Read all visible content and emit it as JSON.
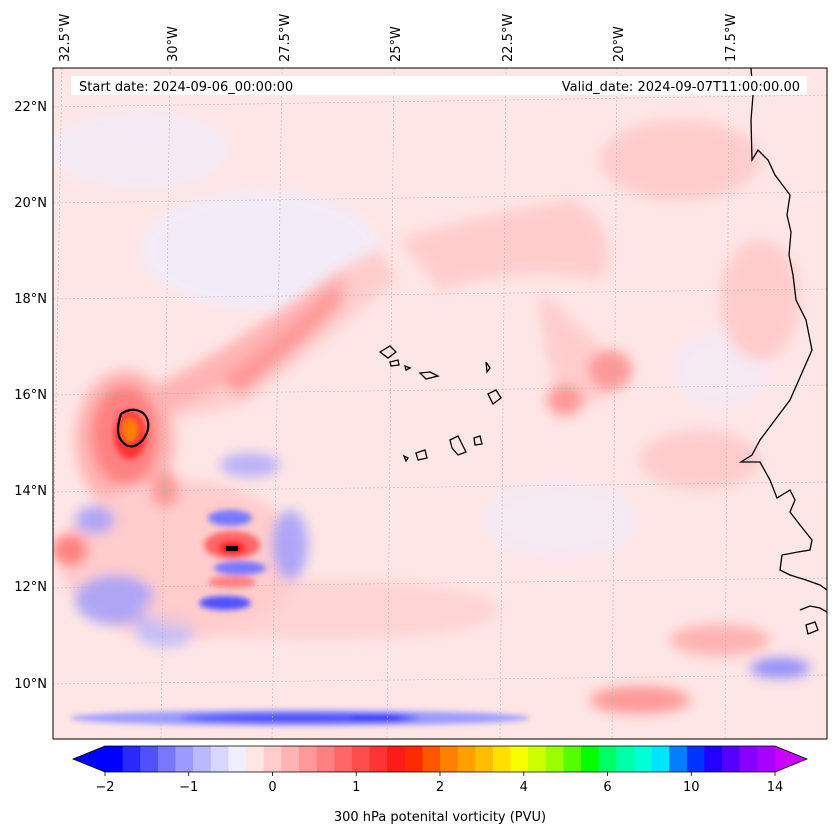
{
  "header": {
    "start_date": "Start date: 2024-09-06_00:00:00",
    "valid_date": "Valid_date: 2024-09-07T11:00:00.00"
  },
  "axes": {
    "lon_labels": [
      "32.5°W",
      "30°W",
      "27.5°W",
      "25°W",
      "22.5°W",
      "20°W",
      "17.5°W"
    ],
    "lat_labels": [
      "22°N",
      "20°N",
      "18°N",
      "16°N",
      "14°N",
      "12°N",
      "10°N"
    ]
  },
  "colorbar": {
    "label": "300 hPa potenital vorticity (PVU)",
    "tick_labels": [
      "-2",
      "-1",
      "0",
      "1",
      "2",
      "4",
      "6",
      "10",
      "14"
    ],
    "colors": [
      "#0000ff",
      "#2828ff",
      "#5050ff",
      "#7878ff",
      "#9b9bff",
      "#b9b9ff",
      "#d6d6ff",
      "#eeeeff",
      "#ffe6e6",
      "#ffcccc",
      "#ffb3b3",
      "#ff9999",
      "#ff8080",
      "#ff6666",
      "#ff4d4d",
      "#ff3333",
      "#ff1a1a",
      "#ff2a00",
      "#ff5500",
      "#ff8000",
      "#ff9f00",
      "#ffbf00",
      "#ffe000",
      "#f5ff00",
      "#ccff00",
      "#99ff00",
      "#55ff00",
      "#00ff00",
      "#00ff66",
      "#00ffaa",
      "#00ffd5",
      "#00e5ff",
      "#0080ff",
      "#0033ff",
      "#2200ff",
      "#5500ff",
      "#8800ff",
      "#aa00ff"
    ],
    "extend_low": "#0000ff",
    "extend_high": "#cc00ff"
  },
  "map_data": {
    "field": "300 hPa potential vorticity",
    "units": "PVU",
    "lon_range": [
      -32.7,
      -15.5
    ],
    "lat_range": [
      8.9,
      22.8
    ],
    "features": [
      {
        "name": "PV maximum west",
        "lon": -30.9,
        "lat": 15.3,
        "value": 2.5
      },
      {
        "name": "PV maximum south",
        "lon": -29.2,
        "lat": 12.8,
        "value": 1.6
      },
      {
        "name": "negative PV band",
        "lat": 9.3,
        "value": -1.2
      }
    ]
  }
}
